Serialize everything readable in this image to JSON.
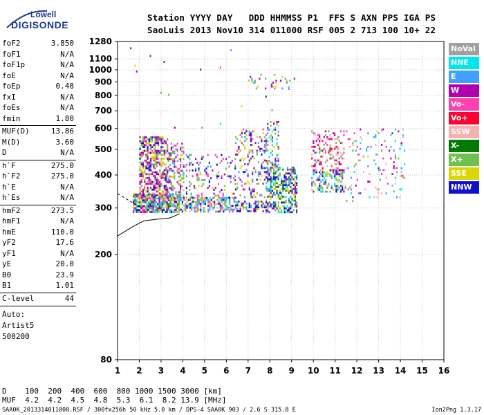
{
  "logo": {
    "top": "Lowell",
    "bottom": "DIGISONDE"
  },
  "header": {
    "line1": "Station YYYY DAY   DDD HHMMSS P1  FFS S AXN PPS IGA PS",
    "line2": "SaoLuis 2013 Nov10 314 011000 RSF 005 2 713 100 10+ 22"
  },
  "params": [
    {
      "name": "foF2",
      "value": "3.850"
    },
    {
      "name": "foF1",
      "value": "N/A"
    },
    {
      "name": "foF1p",
      "value": "N/A"
    },
    {
      "name": "foE",
      "value": "N/A"
    },
    {
      "name": "foEp",
      "value": "0.48"
    },
    {
      "name": "fxI",
      "value": "N/A"
    },
    {
      "name": "foEs",
      "value": "N/A"
    },
    {
      "name": "fmin",
      "value": "1.80"
    },
    {
      "name": "MUF(D)",
      "value": "13.86"
    },
    {
      "name": "M(D)",
      "value": "3.60"
    },
    {
      "name": "D",
      "value": "N/A"
    },
    {
      "name": "h`F",
      "value": "275.0"
    },
    {
      "name": "h`F2",
      "value": "275.0"
    },
    {
      "name": "h`E",
      "value": "N/A"
    },
    {
      "name": "h`Es",
      "value": "N/A"
    },
    {
      "name": "hmF2",
      "value": "273.5"
    },
    {
      "name": "hmF1",
      "value": "N/A"
    },
    {
      "name": "hmE",
      "value": "110.0"
    },
    {
      "name": "yF2",
      "value": "17.6"
    },
    {
      "name": "yF1",
      "value": "N/A"
    },
    {
      "name": "yE",
      "value": "20.0"
    },
    {
      "name": "B0",
      "value": "23.9"
    },
    {
      "name": "B1",
      "value": "1.01"
    },
    {
      "name": "C-level",
      "value": "44"
    }
  ],
  "auto": {
    "line1": "Auto:",
    "line2": "Artist5",
    "line3": "500200"
  },
  "legend": [
    {
      "label": "NoVal",
      "color": "#a0a0a0"
    },
    {
      "label": "NNE",
      "color": "#00e5ee"
    },
    {
      "label": "E",
      "color": "#3fa0ff"
    },
    {
      "label": "W",
      "color": "#b000b0"
    },
    {
      "label": "Vo-",
      "color": "#ff40b0"
    },
    {
      "label": "Vo+",
      "color": "#ff0033"
    },
    {
      "label": "SSW",
      "color": "#f5b0b0"
    },
    {
      "label": "X-",
      "color": "#007a00"
    },
    {
      "label": "X+",
      "color": "#70c050"
    },
    {
      "label": "SSE",
      "color": "#d8d800"
    },
    {
      "label": "NNW",
      "color": "#1010d0"
    }
  ],
  "bottom": {
    "line1": "D    100  200  400  600  800 1000 1500 3000 [km]",
    "line2": "MUF  4.2  4.2  4.5  4.8  5.3  6.1  8.2 13.9 [MHz]"
  },
  "footer": {
    "left": "SAA0K_2013314011000.RSF / 300fx256h 50 kHz 5.0 km / DPS-4 SAA0K 903 / 2.6 S 315.8 E",
    "right": "Ion2Png 1.3.17"
  },
  "chart_data": {
    "type": "scatter",
    "title": "",
    "xlabel": "",
    "ylabel": "",
    "xlim": [
      1,
      16
    ],
    "ylim": [
      80,
      1280
    ],
    "yscale": "log",
    "x_ticks": [
      1,
      2,
      3,
      4,
      5,
      6,
      7,
      8,
      9,
      10,
      11,
      12,
      13,
      14,
      15,
      16
    ],
    "y_ticks": [
      80,
      200,
      300,
      400,
      500,
      600,
      700,
      800,
      900,
      1000,
      1100,
      1280
    ],
    "grid": "dotted",
    "legend_placement": "right",
    "trace_x": [
      1.0,
      1.7,
      2.2,
      2.8,
      3.4,
      3.85
    ],
    "trace_y": [
      235,
      255,
      268,
      272,
      275,
      285
    ],
    "regions": [
      {
        "x": [
          1.7,
          3.8
        ],
        "y": [
          290,
          340
        ],
        "colors": [
          "NNW",
          "X-",
          "X+",
          "SSE",
          "W",
          "E",
          "Vo-",
          "NNE"
        ],
        "density": 0.8
      },
      {
        "x": [
          2.0,
          3.3
        ],
        "y": [
          330,
          560
        ],
        "colors": [
          "W",
          "Vo-",
          "SSE",
          "NNW",
          "X+"
        ],
        "density": 0.55
      },
      {
        "x": [
          3.3,
          4.0
        ],
        "y": [
          330,
          530
        ],
        "colors": [
          "W",
          "SSE",
          "Vo-",
          "X+",
          "E"
        ],
        "density": 0.35
      },
      {
        "x": [
          3.6,
          6.4
        ],
        "y": [
          290,
          330
        ],
        "colors": [
          "Vo-",
          "E",
          "NNE",
          "SSE",
          "X+",
          "NNW",
          "SSW"
        ],
        "density": 0.55
      },
      {
        "x": [
          4.0,
          6.4
        ],
        "y": [
          330,
          480
        ],
        "colors": [
          "SSE",
          "W",
          "X+",
          "E",
          "Vo-",
          "NNW"
        ],
        "density": 0.2
      },
      {
        "x": [
          6.4,
          7.9
        ],
        "y": [
          290,
          320
        ],
        "colors": [
          "NNW",
          "SSE",
          "E",
          "X+",
          "W"
        ],
        "density": 0.55
      },
      {
        "x": [
          6.4,
          7.9
        ],
        "y": [
          330,
          600
        ],
        "colors": [
          "SSE",
          "W",
          "X+",
          "E",
          "Vo-",
          "NNW"
        ],
        "density": 0.2
      },
      {
        "x": [
          7.8,
          9.2
        ],
        "y": [
          290,
          430
        ],
        "colors": [
          "NNW",
          "E",
          "NNE",
          "SSE",
          "X+",
          "W",
          "X-"
        ],
        "density": 0.55
      },
      {
        "x": [
          7.8,
          8.4
        ],
        "y": [
          430,
          640
        ],
        "colors": [
          "E",
          "NNE",
          "W",
          "SSE",
          "X+"
        ],
        "density": 0.3
      },
      {
        "x": [
          7.0,
          9.2
        ],
        "y": [
          850,
          965
        ],
        "colors": [
          "W",
          "SSE",
          "X+",
          "E"
        ],
        "density": 0.12
      },
      {
        "x": [
          9.9,
          11.5
        ],
        "y": [
          345,
          420
        ],
        "colors": [
          "NNW",
          "E",
          "X+",
          "SSE",
          "NNE",
          "W"
        ],
        "density": 0.45
      },
      {
        "x": [
          9.9,
          11.4
        ],
        "y": [
          420,
          590
        ],
        "colors": [
          "Vo-",
          "W",
          "SSW",
          "Vo+",
          "X+"
        ],
        "density": 0.25
      },
      {
        "x": [
          11.5,
          14.2
        ],
        "y": [
          320,
          600
        ],
        "colors": [
          "SSW",
          "Vo-",
          "W",
          "E",
          "X+",
          "NNE"
        ],
        "density": 0.08
      },
      {
        "x": [
          1.5,
          9.0
        ],
        "y": [
          600,
          1280
        ],
        "colors": [
          "W",
          "SSE",
          "E",
          "NNE",
          "X-",
          "X+",
          "Vo-"
        ],
        "density": 0.006
      }
    ]
  }
}
